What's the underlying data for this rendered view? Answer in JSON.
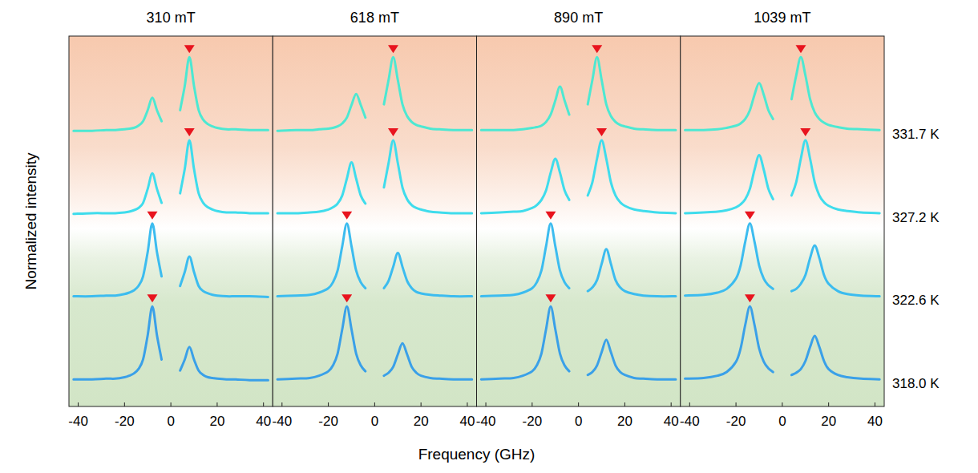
{
  "xlabel": "Frequency (GHz)",
  "ylabel": "Normalized intensity",
  "temperatures": [
    "331.7 K",
    "327.2 K",
    "322.6 K",
    "318.0 K"
  ],
  "chart_data": [
    {
      "type": "line",
      "title": "310 mT",
      "x": [
        -42,
        -34,
        -28,
        -24,
        -20,
        -18,
        -16,
        -14,
        -12,
        -10,
        -8,
        -6,
        -4,
        0,
        4,
        6,
        8,
        10,
        12,
        14,
        16,
        18,
        20,
        24,
        28,
        34,
        42
      ],
      "xlim": [
        -44,
        44
      ],
      "xticks": [
        -40,
        -20,
        0,
        20,
        40
      ],
      "ylim": [
        0,
        1.1
      ],
      "tick_labels": "x",
      "series": [
        {
          "color": "#4de8d2",
          "peak": 8,
          "values": [
            0.02,
            0.02,
            0.03,
            0.03,
            0.04,
            0.05,
            0.06,
            0.09,
            0.15,
            0.3,
            0.47,
            0.3,
            0.15,
            null,
            0.3,
            0.63,
            1.02,
            0.63,
            0.3,
            0.17,
            0.11,
            0.08,
            0.06,
            0.04,
            0.04,
            0.03,
            0.03
          ]
        },
        {
          "color": "#3fdcec",
          "peak": 8,
          "values": [
            0.02,
            0.03,
            0.03,
            0.03,
            0.04,
            0.05,
            0.07,
            0.1,
            0.17,
            0.36,
            0.57,
            0.36,
            0.17,
            null,
            0.3,
            0.63,
            1.02,
            0.63,
            0.3,
            0.17,
            0.11,
            0.08,
            0.06,
            0.04,
            0.04,
            0.03,
            0.03
          ]
        },
        {
          "color": "#3cbcef",
          "peak": -8,
          "values": [
            0.03,
            0.03,
            0.04,
            0.04,
            0.06,
            0.08,
            0.11,
            0.17,
            0.3,
            0.63,
            1.02,
            0.63,
            0.3,
            null,
            0.17,
            0.36,
            0.57,
            0.36,
            0.17,
            0.1,
            0.07,
            0.05,
            0.04,
            0.03,
            0.03,
            0.03,
            0.02
          ]
        },
        {
          "color": "#3aa0e8",
          "peak": -8,
          "values": [
            0.03,
            0.03,
            0.04,
            0.04,
            0.06,
            0.08,
            0.11,
            0.17,
            0.3,
            0.63,
            1.02,
            0.63,
            0.3,
            null,
            0.15,
            0.3,
            0.47,
            0.3,
            0.15,
            0.09,
            0.06,
            0.05,
            0.04,
            0.03,
            0.03,
            0.02,
            0.02
          ]
        }
      ]
    },
    {
      "type": "line",
      "title": "618 mT",
      "x": [
        -42,
        -34,
        -28,
        -24,
        -20,
        -18,
        -16,
        -14,
        -12,
        -10,
        -8,
        -6,
        -4,
        0,
        4,
        6,
        8,
        10,
        12,
        14,
        16,
        18,
        20,
        24,
        28,
        34,
        42
      ],
      "xlim": [
        -44,
        44
      ],
      "xticks": [
        -40,
        -20,
        0,
        20,
        40
      ],
      "ylim": [
        0,
        1.1
      ],
      "tick_labels": "x",
      "series": [
        {
          "color": "#4de8d2",
          "peak": 8,
          "values": [
            0.02,
            0.03,
            0.03,
            0.04,
            0.05,
            0.06,
            0.08,
            0.12,
            0.2,
            0.37,
            0.52,
            0.37,
            0.2,
            null,
            0.38,
            0.71,
            1.02,
            0.71,
            0.38,
            0.22,
            0.14,
            0.1,
            0.08,
            0.05,
            0.04,
            0.03,
            0.03
          ]
        },
        {
          "color": "#3fdcec",
          "peak": 8,
          "values": [
            0.03,
            0.03,
            0.04,
            0.05,
            0.08,
            0.11,
            0.16,
            0.27,
            0.5,
            0.72,
            0.5,
            0.27,
            0.16,
            null,
            0.38,
            0.71,
            1.02,
            0.71,
            0.38,
            0.22,
            0.14,
            0.1,
            0.08,
            0.05,
            0.04,
            0.03,
            0.03
          ]
        },
        {
          "color": "#3cbcef",
          "peak": -12,
          "values": [
            0.03,
            0.04,
            0.05,
            0.08,
            0.14,
            0.22,
            0.38,
            0.71,
            1.02,
            0.71,
            0.38,
            0.22,
            0.14,
            null,
            0.14,
            0.24,
            0.43,
            0.62,
            0.43,
            0.24,
            0.14,
            0.09,
            0.07,
            0.05,
            0.04,
            0.03,
            0.03
          ]
        },
        {
          "color": "#3aa0e8",
          "peak": -12,
          "values": [
            0.03,
            0.04,
            0.05,
            0.08,
            0.14,
            0.22,
            0.38,
            0.71,
            1.02,
            0.71,
            0.38,
            0.22,
            0.14,
            null,
            0.08,
            0.12,
            0.2,
            0.37,
            0.52,
            0.37,
            0.2,
            0.12,
            0.08,
            0.05,
            0.04,
            0.03,
            0.03
          ]
        }
      ]
    },
    {
      "type": "line",
      "title": "890 mT",
      "x": [
        -42,
        -34,
        -28,
        -24,
        -20,
        -18,
        -16,
        -14,
        -12,
        -10,
        -8,
        -6,
        -4,
        0,
        4,
        6,
        8,
        10,
        12,
        14,
        16,
        18,
        20,
        24,
        28,
        34,
        42
      ],
      "xlim": [
        -44,
        44
      ],
      "xticks": [
        -40,
        -20,
        0,
        20,
        40
      ],
      "ylim": [
        0,
        1.1
      ],
      "tick_labels": "x",
      "series": [
        {
          "color": "#4de8d2",
          "peak": 8,
          "values": [
            0.03,
            0.03,
            0.03,
            0.04,
            0.06,
            0.07,
            0.09,
            0.14,
            0.24,
            0.43,
            0.62,
            0.43,
            0.24,
            null,
            0.38,
            0.71,
            1.02,
            0.71,
            0.38,
            0.22,
            0.14,
            0.1,
            0.08,
            0.05,
            0.04,
            0.03,
            0.03
          ]
        },
        {
          "color": "#3fdcec",
          "peak": 10,
          "values": [
            0.03,
            0.04,
            0.05,
            0.06,
            0.1,
            0.14,
            0.21,
            0.34,
            0.58,
            0.77,
            0.58,
            0.34,
            0.21,
            null,
            0.27,
            0.45,
            0.77,
            1.02,
            0.77,
            0.45,
            0.27,
            0.18,
            0.13,
            0.08,
            0.06,
            0.04,
            0.03
          ]
        },
        {
          "color": "#3cbcef",
          "peak": -12,
          "values": [
            0.03,
            0.04,
            0.05,
            0.08,
            0.14,
            0.22,
            0.38,
            0.71,
            1.02,
            0.71,
            0.38,
            0.22,
            0.14,
            null,
            0.1,
            0.15,
            0.25,
            0.47,
            0.67,
            0.47,
            0.25,
            0.15,
            0.1,
            0.06,
            0.04,
            0.03,
            0.03
          ]
        },
        {
          "color": "#3aa0e8",
          "peak": -12,
          "values": [
            0.03,
            0.04,
            0.05,
            0.08,
            0.14,
            0.22,
            0.38,
            0.71,
            1.02,
            0.71,
            0.38,
            0.22,
            0.14,
            null,
            0.09,
            0.13,
            0.22,
            0.4,
            0.57,
            0.4,
            0.22,
            0.13,
            0.09,
            0.05,
            0.04,
            0.03,
            0.03
          ]
        }
      ]
    },
    {
      "type": "line",
      "title": "1039 mT",
      "x": [
        -42,
        -34,
        -28,
        -24,
        -20,
        -18,
        -16,
        -14,
        -12,
        -10,
        -8,
        -6,
        -4,
        0,
        4,
        6,
        8,
        10,
        12,
        14,
        16,
        18,
        20,
        24,
        28,
        34,
        42
      ],
      "xlim": [
        -44,
        44
      ],
      "xticks": [
        -40,
        -20,
        0,
        20,
        40
      ],
      "ylim": [
        0,
        1.1
      ],
      "tick_labels": "x",
      "series": [
        {
          "color": "#4de8d2",
          "peak": 8,
          "values": [
            0.03,
            0.03,
            0.04,
            0.06,
            0.09,
            0.12,
            0.18,
            0.3,
            0.51,
            0.67,
            0.51,
            0.3,
            0.18,
            null,
            0.45,
            0.77,
            1.02,
            0.77,
            0.45,
            0.27,
            0.18,
            0.13,
            0.1,
            0.07,
            0.05,
            0.04,
            0.03
          ]
        },
        {
          "color": "#3fdcec",
          "peak": 10,
          "values": [
            0.03,
            0.04,
            0.05,
            0.07,
            0.11,
            0.15,
            0.22,
            0.36,
            0.62,
            0.82,
            0.62,
            0.36,
            0.22,
            null,
            0.27,
            0.45,
            0.77,
            1.02,
            0.77,
            0.45,
            0.27,
            0.18,
            0.13,
            0.08,
            0.06,
            0.04,
            0.03
          ]
        },
        {
          "color": "#3cbcef",
          "peak": -14,
          "values": [
            0.04,
            0.05,
            0.08,
            0.13,
            0.27,
            0.45,
            0.77,
            1.02,
            0.77,
            0.45,
            0.27,
            0.18,
            0.13,
            null,
            0.1,
            0.13,
            0.2,
            0.32,
            0.55,
            0.72,
            0.55,
            0.32,
            0.2,
            0.1,
            0.06,
            0.04,
            0.03
          ]
        },
        {
          "color": "#3aa0e8",
          "peak": -14,
          "values": [
            0.04,
            0.05,
            0.08,
            0.13,
            0.27,
            0.45,
            0.77,
            1.02,
            0.77,
            0.45,
            0.27,
            0.18,
            0.13,
            null,
            0.09,
            0.12,
            0.17,
            0.28,
            0.47,
            0.62,
            0.47,
            0.28,
            0.17,
            0.09,
            0.06,
            0.04,
            0.03
          ]
        }
      ]
    }
  ]
}
